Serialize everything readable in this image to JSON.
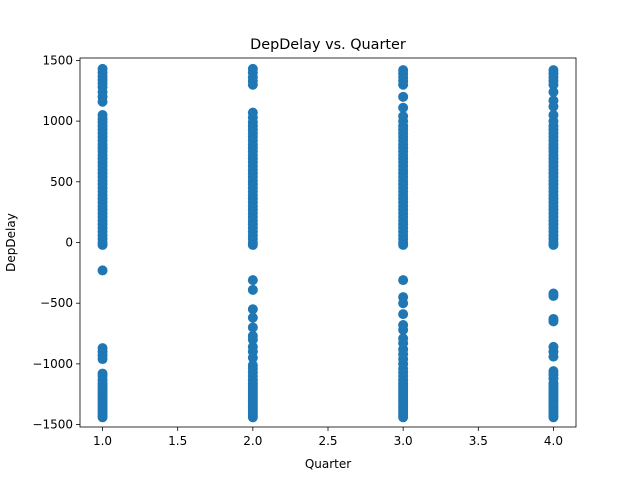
{
  "chart_data": {
    "type": "scatter",
    "title": "DepDelay vs. Quarter",
    "xlabel": "Quarter",
    "ylabel": "DepDelay",
    "xlim": [
      0.85,
      4.15
    ],
    "ylim": [
      -1520,
      1520
    ],
    "x_ticks": [
      1.0,
      1.5,
      2.0,
      2.5,
      3.0,
      3.5,
      4.0
    ],
    "x_tick_labels": [
      "1.0",
      "1.5",
      "2.0",
      "2.5",
      "3.0",
      "3.5",
      "4.0"
    ],
    "y_ticks": [
      -1500,
      -1000,
      -500,
      0,
      500,
      1000,
      1500
    ],
    "y_tick_labels": [
      "−1500",
      "−1000",
      "−500",
      "0",
      "500",
      "1000",
      "1500"
    ],
    "grid": false,
    "color": "#1f77b4",
    "series": [
      {
        "points": [
          {
            "x": 1,
            "y": -1440
          },
          {
            "x": 1,
            "y": -1420
          },
          {
            "x": 1,
            "y": -1400
          },
          {
            "x": 1,
            "y": -1380
          },
          {
            "x": 1,
            "y": -1360
          },
          {
            "x": 1,
            "y": -1340
          },
          {
            "x": 1,
            "y": -1320
          },
          {
            "x": 1,
            "y": -1300
          },
          {
            "x": 1,
            "y": -1280
          },
          {
            "x": 1,
            "y": -1260
          },
          {
            "x": 1,
            "y": -1240
          },
          {
            "x": 1,
            "y": -1220
          },
          {
            "x": 1,
            "y": -1200
          },
          {
            "x": 1,
            "y": -1180
          },
          {
            "x": 1,
            "y": -1160
          },
          {
            "x": 1,
            "y": -1130
          },
          {
            "x": 1,
            "y": -1100
          },
          {
            "x": 1,
            "y": -1080
          },
          {
            "x": 1,
            "y": -960
          },
          {
            "x": 1,
            "y": -930
          },
          {
            "x": 1,
            "y": -900
          },
          {
            "x": 1,
            "y": -870
          },
          {
            "x": 1,
            "y": -230
          },
          {
            "x": 1,
            "y": -20
          },
          {
            "x": 1,
            "y": 0
          },
          {
            "x": 1,
            "y": 30
          },
          {
            "x": 1,
            "y": 60
          },
          {
            "x": 1,
            "y": 90
          },
          {
            "x": 1,
            "y": 120
          },
          {
            "x": 1,
            "y": 150
          },
          {
            "x": 1,
            "y": 180
          },
          {
            "x": 1,
            "y": 210
          },
          {
            "x": 1,
            "y": 240
          },
          {
            "x": 1,
            "y": 270
          },
          {
            "x": 1,
            "y": 300
          },
          {
            "x": 1,
            "y": 330
          },
          {
            "x": 1,
            "y": 360
          },
          {
            "x": 1,
            "y": 390
          },
          {
            "x": 1,
            "y": 420
          },
          {
            "x": 1,
            "y": 450
          },
          {
            "x": 1,
            "y": 480
          },
          {
            "x": 1,
            "y": 510
          },
          {
            "x": 1,
            "y": 540
          },
          {
            "x": 1,
            "y": 570
          },
          {
            "x": 1,
            "y": 600
          },
          {
            "x": 1,
            "y": 630
          },
          {
            "x": 1,
            "y": 660
          },
          {
            "x": 1,
            "y": 690
          },
          {
            "x": 1,
            "y": 720
          },
          {
            "x": 1,
            "y": 750
          },
          {
            "x": 1,
            "y": 780
          },
          {
            "x": 1,
            "y": 810
          },
          {
            "x": 1,
            "y": 840
          },
          {
            "x": 1,
            "y": 870
          },
          {
            "x": 1,
            "y": 900
          },
          {
            "x": 1,
            "y": 930
          },
          {
            "x": 1,
            "y": 960
          },
          {
            "x": 1,
            "y": 990
          },
          {
            "x": 1,
            "y": 1020
          },
          {
            "x": 1,
            "y": 1050
          },
          {
            "x": 1,
            "y": 1160
          },
          {
            "x": 1,
            "y": 1200
          },
          {
            "x": 1,
            "y": 1240
          },
          {
            "x": 1,
            "y": 1280
          },
          {
            "x": 1,
            "y": 1310
          },
          {
            "x": 1,
            "y": 1340
          },
          {
            "x": 1,
            "y": 1370
          },
          {
            "x": 1,
            "y": 1400
          },
          {
            "x": 1,
            "y": 1430
          },
          {
            "x": 2,
            "y": -1440
          },
          {
            "x": 2,
            "y": -1420
          },
          {
            "x": 2,
            "y": -1400
          },
          {
            "x": 2,
            "y": -1380
          },
          {
            "x": 2,
            "y": -1360
          },
          {
            "x": 2,
            "y": -1340
          },
          {
            "x": 2,
            "y": -1320
          },
          {
            "x": 2,
            "y": -1300
          },
          {
            "x": 2,
            "y": -1280
          },
          {
            "x": 2,
            "y": -1260
          },
          {
            "x": 2,
            "y": -1240
          },
          {
            "x": 2,
            "y": -1220
          },
          {
            "x": 2,
            "y": -1200
          },
          {
            "x": 2,
            "y": -1180
          },
          {
            "x": 2,
            "y": -1160
          },
          {
            "x": 2,
            "y": -1130
          },
          {
            "x": 2,
            "y": -1100
          },
          {
            "x": 2,
            "y": -1070
          },
          {
            "x": 2,
            "y": -1040
          },
          {
            "x": 2,
            "y": -1010
          },
          {
            "x": 2,
            "y": -950
          },
          {
            "x": 2,
            "y": -900
          },
          {
            "x": 2,
            "y": -860
          },
          {
            "x": 2,
            "y": -800
          },
          {
            "x": 2,
            "y": -770
          },
          {
            "x": 2,
            "y": -700
          },
          {
            "x": 2,
            "y": -620
          },
          {
            "x": 2,
            "y": -550
          },
          {
            "x": 2,
            "y": -390
          },
          {
            "x": 2,
            "y": -310
          },
          {
            "x": 2,
            "y": -20
          },
          {
            "x": 2,
            "y": 0
          },
          {
            "x": 2,
            "y": 30
          },
          {
            "x": 2,
            "y": 60
          },
          {
            "x": 2,
            "y": 90
          },
          {
            "x": 2,
            "y": 120
          },
          {
            "x": 2,
            "y": 150
          },
          {
            "x": 2,
            "y": 180
          },
          {
            "x": 2,
            "y": 210
          },
          {
            "x": 2,
            "y": 240
          },
          {
            "x": 2,
            "y": 270
          },
          {
            "x": 2,
            "y": 300
          },
          {
            "x": 2,
            "y": 330
          },
          {
            "x": 2,
            "y": 360
          },
          {
            "x": 2,
            "y": 390
          },
          {
            "x": 2,
            "y": 420
          },
          {
            "x": 2,
            "y": 450
          },
          {
            "x": 2,
            "y": 480
          },
          {
            "x": 2,
            "y": 510
          },
          {
            "x": 2,
            "y": 540
          },
          {
            "x": 2,
            "y": 570
          },
          {
            "x": 2,
            "y": 600
          },
          {
            "x": 2,
            "y": 630
          },
          {
            "x": 2,
            "y": 660
          },
          {
            "x": 2,
            "y": 690
          },
          {
            "x": 2,
            "y": 720
          },
          {
            "x": 2,
            "y": 750
          },
          {
            "x": 2,
            "y": 780
          },
          {
            "x": 2,
            "y": 810
          },
          {
            "x": 2,
            "y": 840
          },
          {
            "x": 2,
            "y": 870
          },
          {
            "x": 2,
            "y": 900
          },
          {
            "x": 2,
            "y": 930
          },
          {
            "x": 2,
            "y": 960
          },
          {
            "x": 2,
            "y": 990
          },
          {
            "x": 2,
            "y": 1030
          },
          {
            "x": 2,
            "y": 1070
          },
          {
            "x": 2,
            "y": 1300
          },
          {
            "x": 2,
            "y": 1330
          },
          {
            "x": 2,
            "y": 1360
          },
          {
            "x": 2,
            "y": 1400
          },
          {
            "x": 2,
            "y": 1430
          },
          {
            "x": 3,
            "y": -1440
          },
          {
            "x": 3,
            "y": -1420
          },
          {
            "x": 3,
            "y": -1400
          },
          {
            "x": 3,
            "y": -1380
          },
          {
            "x": 3,
            "y": -1360
          },
          {
            "x": 3,
            "y": -1340
          },
          {
            "x": 3,
            "y": -1320
          },
          {
            "x": 3,
            "y": -1300
          },
          {
            "x": 3,
            "y": -1280
          },
          {
            "x": 3,
            "y": -1260
          },
          {
            "x": 3,
            "y": -1240
          },
          {
            "x": 3,
            "y": -1220
          },
          {
            "x": 3,
            "y": -1200
          },
          {
            "x": 3,
            "y": -1180
          },
          {
            "x": 3,
            "y": -1160
          },
          {
            "x": 3,
            "y": -1130
          },
          {
            "x": 3,
            "y": -1100
          },
          {
            "x": 3,
            "y": -1070
          },
          {
            "x": 3,
            "y": -1040
          },
          {
            "x": 3,
            "y": -1000
          },
          {
            "x": 3,
            "y": -960
          },
          {
            "x": 3,
            "y": -920
          },
          {
            "x": 3,
            "y": -880
          },
          {
            "x": 3,
            "y": -830
          },
          {
            "x": 3,
            "y": -790
          },
          {
            "x": 3,
            "y": -720
          },
          {
            "x": 3,
            "y": -680
          },
          {
            "x": 3,
            "y": -590
          },
          {
            "x": 3,
            "y": -500
          },
          {
            "x": 3,
            "y": -450
          },
          {
            "x": 3,
            "y": -310
          },
          {
            "x": 3,
            "y": -20
          },
          {
            "x": 3,
            "y": 0
          },
          {
            "x": 3,
            "y": 30
          },
          {
            "x": 3,
            "y": 60
          },
          {
            "x": 3,
            "y": 90
          },
          {
            "x": 3,
            "y": 120
          },
          {
            "x": 3,
            "y": 150
          },
          {
            "x": 3,
            "y": 180
          },
          {
            "x": 3,
            "y": 210
          },
          {
            "x": 3,
            "y": 240
          },
          {
            "x": 3,
            "y": 270
          },
          {
            "x": 3,
            "y": 300
          },
          {
            "x": 3,
            "y": 330
          },
          {
            "x": 3,
            "y": 360
          },
          {
            "x": 3,
            "y": 390
          },
          {
            "x": 3,
            "y": 420
          },
          {
            "x": 3,
            "y": 450
          },
          {
            "x": 3,
            "y": 480
          },
          {
            "x": 3,
            "y": 510
          },
          {
            "x": 3,
            "y": 540
          },
          {
            "x": 3,
            "y": 570
          },
          {
            "x": 3,
            "y": 600
          },
          {
            "x": 3,
            "y": 630
          },
          {
            "x": 3,
            "y": 660
          },
          {
            "x": 3,
            "y": 690
          },
          {
            "x": 3,
            "y": 720
          },
          {
            "x": 3,
            "y": 750
          },
          {
            "x": 3,
            "y": 780
          },
          {
            "x": 3,
            "y": 810
          },
          {
            "x": 3,
            "y": 840
          },
          {
            "x": 3,
            "y": 870
          },
          {
            "x": 3,
            "y": 900
          },
          {
            "x": 3,
            "y": 930
          },
          {
            "x": 3,
            "y": 960
          },
          {
            "x": 3,
            "y": 1000
          },
          {
            "x": 3,
            "y": 1040
          },
          {
            "x": 3,
            "y": 1110
          },
          {
            "x": 3,
            "y": 1200
          },
          {
            "x": 3,
            "y": 1300
          },
          {
            "x": 3,
            "y": 1330
          },
          {
            "x": 3,
            "y": 1360
          },
          {
            "x": 3,
            "y": 1390
          },
          {
            "x": 3,
            "y": 1420
          },
          {
            "x": 4,
            "y": -1440
          },
          {
            "x": 4,
            "y": -1420
          },
          {
            "x": 4,
            "y": -1400
          },
          {
            "x": 4,
            "y": -1380
          },
          {
            "x": 4,
            "y": -1360
          },
          {
            "x": 4,
            "y": -1340
          },
          {
            "x": 4,
            "y": -1320
          },
          {
            "x": 4,
            "y": -1300
          },
          {
            "x": 4,
            "y": -1280
          },
          {
            "x": 4,
            "y": -1260
          },
          {
            "x": 4,
            "y": -1240
          },
          {
            "x": 4,
            "y": -1220
          },
          {
            "x": 4,
            "y": -1200
          },
          {
            "x": 4,
            "y": -1180
          },
          {
            "x": 4,
            "y": -1160
          },
          {
            "x": 4,
            "y": -1120
          },
          {
            "x": 4,
            "y": -1090
          },
          {
            "x": 4,
            "y": -1060
          },
          {
            "x": 4,
            "y": -940
          },
          {
            "x": 4,
            "y": -900
          },
          {
            "x": 4,
            "y": -860
          },
          {
            "x": 4,
            "y": -650
          },
          {
            "x": 4,
            "y": -630
          },
          {
            "x": 4,
            "y": -440
          },
          {
            "x": 4,
            "y": -420
          },
          {
            "x": 4,
            "y": -20
          },
          {
            "x": 4,
            "y": 0
          },
          {
            "x": 4,
            "y": 30
          },
          {
            "x": 4,
            "y": 60
          },
          {
            "x": 4,
            "y": 90
          },
          {
            "x": 4,
            "y": 120
          },
          {
            "x": 4,
            "y": 150
          },
          {
            "x": 4,
            "y": 180
          },
          {
            "x": 4,
            "y": 210
          },
          {
            "x": 4,
            "y": 240
          },
          {
            "x": 4,
            "y": 270
          },
          {
            "x": 4,
            "y": 300
          },
          {
            "x": 4,
            "y": 330
          },
          {
            "x": 4,
            "y": 360
          },
          {
            "x": 4,
            "y": 390
          },
          {
            "x": 4,
            "y": 420
          },
          {
            "x": 4,
            "y": 450
          },
          {
            "x": 4,
            "y": 480
          },
          {
            "x": 4,
            "y": 510
          },
          {
            "x": 4,
            "y": 540
          },
          {
            "x": 4,
            "y": 570
          },
          {
            "x": 4,
            "y": 600
          },
          {
            "x": 4,
            "y": 630
          },
          {
            "x": 4,
            "y": 660
          },
          {
            "x": 4,
            "y": 690
          },
          {
            "x": 4,
            "y": 720
          },
          {
            "x": 4,
            "y": 750
          },
          {
            "x": 4,
            "y": 780
          },
          {
            "x": 4,
            "y": 810
          },
          {
            "x": 4,
            "y": 840
          },
          {
            "x": 4,
            "y": 870
          },
          {
            "x": 4,
            "y": 900
          },
          {
            "x": 4,
            "y": 930
          },
          {
            "x": 4,
            "y": 960
          },
          {
            "x": 4,
            "y": 1000
          },
          {
            "x": 4,
            "y": 1050
          },
          {
            "x": 4,
            "y": 1120
          },
          {
            "x": 4,
            "y": 1170
          },
          {
            "x": 4,
            "y": 1240
          },
          {
            "x": 4,
            "y": 1300
          },
          {
            "x": 4,
            "y": 1330
          },
          {
            "x": 4,
            "y": 1360
          },
          {
            "x": 4,
            "y": 1390
          },
          {
            "x": 4,
            "y": 1420
          }
        ]
      }
    ]
  }
}
